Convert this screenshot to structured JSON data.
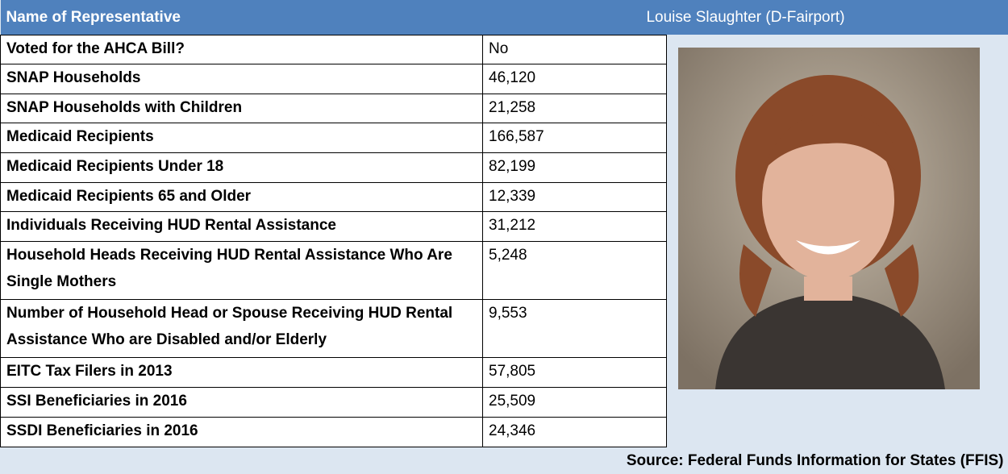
{
  "header": {
    "title": "Name of Representative",
    "name": "Louise Slaughter (D-Fairport)"
  },
  "table": {
    "rows": [
      [
        "Voted for the AHCA Bill?",
        "No"
      ],
      [
        "SNAP Households",
        "46,120"
      ],
      [
        "SNAP Households with Children",
        "21,258"
      ],
      [
        "Medicaid Recipients",
        "166,587"
      ],
      [
        "Medicaid Recipients Under 18",
        "82,199"
      ],
      [
        "Medicaid Recipients 65 and Older",
        "12,339"
      ],
      [
        "Individuals Receiving HUD Rental Assistance",
        "31,212"
      ],
      [
        "Household Heads Receiving HUD Rental Assistance Who Are Single Mothers",
        "5,248"
      ],
      [
        "Number of Household Head or Spouse Receiving HUD Rental Assistance Who are Disabled and/or Elderly",
        "9,553"
      ],
      [
        "EITC Tax Filers in 2013",
        "57,805"
      ],
      [
        "SSI Beneficiaries in 2016",
        "25,509"
      ],
      [
        "SSDI Beneficiaries in 2016",
        "24,346"
      ]
    ]
  },
  "footer": {
    "source": "Source: Federal Funds Information for States (FFIS)"
  }
}
